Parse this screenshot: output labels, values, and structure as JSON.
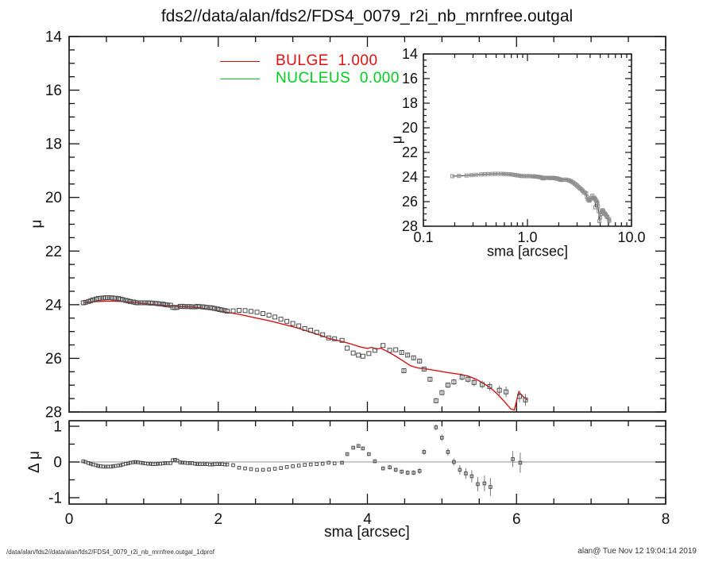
{
  "title": "fds2//data/alan/fds2/FDS4_0079_r2i_nb_mrnfree.outgal",
  "legend": {
    "items": [
      {
        "label": "BULGE  1.000",
        "color": "#dd1111"
      },
      {
        "label": "NUCLEUS  0.000",
        "color": "#00cc22"
      }
    ]
  },
  "footer": {
    "left": "/data/alan/fds2//data/alan/fds2/FDS4_0079_r2i_nb_mrnfree.outgal_1dprof",
    "right": "alan@  Tue Nov 12 19:04:14 2019"
  },
  "colors": {
    "axis": "#111111",
    "model_line": "#dd1111",
    "nucleus_line": "#00cc22",
    "marker": "#4a4a4a",
    "marker_inset": "#8f8f8f",
    "error_bar": "#787878",
    "zero_line": "#aaaaaa",
    "inset_line": "#333333"
  },
  "chart_data": {
    "type": "line+scatter",
    "y_axis_direction": "increasing-downward",
    "main_panel": {
      "ylabel": "μ",
      "xlim": [
        0,
        8
      ],
      "ylim": [
        14,
        28
      ],
      "yticks": [
        14,
        16,
        18,
        20,
        22,
        24,
        26,
        28
      ],
      "grid": false,
      "model_series": {
        "name": "BULGE",
        "points": [
          [
            0.2,
            23.92
          ],
          [
            0.3,
            23.89
          ],
          [
            0.4,
            23.88
          ],
          [
            0.5,
            23.87
          ],
          [
            0.6,
            23.87
          ],
          [
            0.7,
            23.88
          ],
          [
            0.8,
            23.9
          ],
          [
            0.9,
            23.92
          ],
          [
            1.0,
            23.96
          ],
          [
            1.1,
            23.99
          ],
          [
            1.2,
            24.01
          ],
          [
            1.3,
            24.03
          ],
          [
            1.4,
            24.05
          ],
          [
            1.5,
            24.07
          ],
          [
            1.6,
            24.08
          ],
          [
            1.7,
            24.1
          ],
          [
            1.8,
            24.14
          ],
          [
            1.9,
            24.18
          ],
          [
            2.0,
            24.23
          ],
          [
            2.1,
            24.28
          ],
          [
            2.2,
            24.32
          ],
          [
            2.3,
            24.37
          ],
          [
            2.4,
            24.43
          ],
          [
            2.5,
            24.49
          ],
          [
            2.6,
            24.55
          ],
          [
            2.7,
            24.61
          ],
          [
            2.8,
            24.68
          ],
          [
            2.9,
            24.75
          ],
          [
            3.0,
            24.82
          ],
          [
            3.1,
            24.9
          ],
          [
            3.2,
            24.99
          ],
          [
            3.3,
            25.08
          ],
          [
            3.4,
            25.17
          ],
          [
            3.5,
            25.27
          ],
          [
            3.6,
            25.33
          ],
          [
            3.7,
            25.4
          ],
          [
            3.8,
            25.48
          ],
          [
            3.9,
            25.57
          ],
          [
            4.0,
            25.63
          ],
          [
            4.06,
            25.59
          ],
          [
            4.12,
            25.66
          ],
          [
            4.18,
            25.62
          ],
          [
            4.28,
            25.76
          ],
          [
            4.38,
            25.92
          ],
          [
            4.48,
            26.1
          ],
          [
            4.58,
            26.28
          ],
          [
            4.68,
            26.36
          ],
          [
            4.8,
            26.4
          ],
          [
            4.95,
            26.47
          ],
          [
            5.1,
            26.54
          ],
          [
            5.25,
            26.6
          ],
          [
            5.35,
            26.66
          ],
          [
            5.45,
            26.77
          ],
          [
            5.55,
            26.92
          ],
          [
            5.65,
            27.1
          ],
          [
            5.75,
            27.35
          ],
          [
            5.85,
            27.65
          ],
          [
            5.92,
            27.88
          ],
          [
            5.97,
            27.93
          ],
          [
            6.03,
            27.25
          ],
          [
            6.08,
            27.4
          ],
          [
            6.14,
            27.55
          ]
        ]
      },
      "observed_points": [
        [
          0.19,
          23.93,
          0
        ],
        [
          0.22,
          23.91,
          0
        ],
        [
          0.26,
          23.88,
          0
        ],
        [
          0.29,
          23.85,
          0
        ],
        [
          0.32,
          23.82,
          0
        ],
        [
          0.36,
          23.79,
          0
        ],
        [
          0.39,
          23.77,
          0
        ],
        [
          0.42,
          23.76,
          0
        ],
        [
          0.46,
          23.75,
          0
        ],
        [
          0.49,
          23.74,
          0
        ],
        [
          0.52,
          23.74,
          0
        ],
        [
          0.56,
          23.74,
          0
        ],
        [
          0.59,
          23.75,
          0
        ],
        [
          0.62,
          23.76,
          0
        ],
        [
          0.66,
          23.77,
          0
        ],
        [
          0.69,
          23.79,
          0
        ],
        [
          0.72,
          23.81,
          0
        ],
        [
          0.76,
          23.84,
          0
        ],
        [
          0.79,
          23.86,
          0
        ],
        [
          0.82,
          23.88,
          0
        ],
        [
          0.86,
          23.9,
          0
        ],
        [
          0.89,
          23.92,
          0
        ],
        [
          0.92,
          23.93,
          0
        ],
        [
          0.96,
          23.93,
          0
        ],
        [
          0.99,
          23.93,
          0
        ],
        [
          1.02,
          23.93,
          0
        ],
        [
          1.06,
          23.93,
          0
        ],
        [
          1.09,
          23.94,
          0
        ],
        [
          1.12,
          23.94,
          0
        ],
        [
          1.16,
          23.95,
          0
        ],
        [
          1.19,
          23.96,
          0
        ],
        [
          1.22,
          23.97,
          0
        ],
        [
          1.26,
          23.98,
          0
        ],
        [
          1.29,
          24.0,
          0
        ],
        [
          1.32,
          24.01,
          0
        ],
        [
          1.36,
          24.02,
          0
        ],
        [
          1.39,
          24.1,
          0
        ],
        [
          1.42,
          24.11,
          0
        ],
        [
          1.45,
          24.1,
          0
        ],
        [
          1.49,
          24.06,
          0
        ],
        [
          1.52,
          24.06,
          0
        ],
        [
          1.55,
          24.07,
          0
        ],
        [
          1.59,
          24.07,
          0
        ],
        [
          1.62,
          24.07,
          0
        ],
        [
          1.65,
          24.08,
          0
        ],
        [
          1.69,
          24.08,
          0
        ],
        [
          1.72,
          24.06,
          0
        ],
        [
          1.75,
          24.07,
          0
        ],
        [
          1.79,
          24.08,
          0
        ],
        [
          1.82,
          24.09,
          0
        ],
        [
          1.85,
          24.1,
          0
        ],
        [
          1.89,
          24.11,
          0
        ],
        [
          1.92,
          24.12,
          0
        ],
        [
          1.95,
          24.14,
          0
        ],
        [
          1.99,
          24.16,
          0
        ],
        [
          2.02,
          24.18,
          0
        ],
        [
          2.05,
          24.2,
          0
        ],
        [
          2.09,
          24.22,
          0
        ],
        [
          2.12,
          24.24,
          0
        ],
        [
          2.2,
          24.23,
          0
        ],
        [
          2.28,
          24.21,
          0
        ],
        [
          2.36,
          24.22,
          0
        ],
        [
          2.44,
          24.25,
          0
        ],
        [
          2.52,
          24.28,
          0
        ],
        [
          2.6,
          24.33,
          0
        ],
        [
          2.68,
          24.39,
          0
        ],
        [
          2.76,
          24.46,
          0
        ],
        [
          2.84,
          24.54,
          0
        ],
        [
          2.92,
          24.62,
          0
        ],
        [
          3.0,
          24.7,
          0
        ],
        [
          3.08,
          24.79,
          0
        ],
        [
          3.16,
          24.89,
          0
        ],
        [
          3.24,
          24.95,
          0
        ],
        [
          3.32,
          25.03,
          0
        ],
        [
          3.4,
          25.12,
          0
        ],
        [
          3.48,
          25.24,
          0
        ],
        [
          3.56,
          25.27,
          0
        ],
        [
          3.66,
          25.33,
          0
        ],
        [
          3.73,
          25.62,
          0
        ],
        [
          3.81,
          25.8,
          0
        ],
        [
          3.88,
          25.88,
          0
        ],
        [
          3.94,
          25.92,
          0
        ],
        [
          4.02,
          25.82,
          0
        ],
        [
          4.1,
          25.7,
          0
        ],
        [
          4.21,
          25.52,
          0
        ],
        [
          4.3,
          25.7,
          0
        ],
        [
          4.38,
          25.68,
          0
        ],
        [
          4.46,
          25.78,
          0.06
        ],
        [
          4.49,
          26.46,
          0.07
        ],
        [
          4.54,
          25.88,
          0.07
        ],
        [
          4.62,
          25.98,
          0.07
        ],
        [
          4.7,
          26.1,
          0.08
        ],
        [
          4.76,
          26.4,
          0.08
        ],
        [
          4.84,
          26.78,
          0.09
        ],
        [
          4.92,
          27.58,
          0.1
        ],
        [
          5.0,
          27.28,
          0.1
        ],
        [
          5.08,
          27.0,
          0.1
        ],
        [
          5.16,
          26.88,
          0.11
        ],
        [
          5.27,
          26.7,
          0.12
        ],
        [
          5.35,
          26.78,
          0.13
        ],
        [
          5.43,
          26.9,
          0.14
        ],
        [
          5.54,
          26.98,
          0.15
        ],
        [
          5.64,
          27.05,
          0.16
        ],
        [
          5.77,
          27.19,
          0.18
        ],
        [
          5.86,
          27.25,
          0.2
        ],
        [
          6.04,
          27.42,
          0.22
        ],
        [
          6.12,
          27.55,
          0.22
        ]
      ]
    },
    "residual_panel": {
      "ylabel": "Δ μ",
      "xlabel": "sma [arcsec]",
      "xlim": [
        0,
        8
      ],
      "ylim": [
        -1.17,
        1.16
      ],
      "xticks": [
        0,
        2,
        4,
        6,
        8
      ],
      "yticks": [
        1,
        0,
        -1
      ],
      "zero_line": true,
      "points": [
        [
          0.19,
          0.02,
          0
        ],
        [
          0.22,
          0.0,
          0
        ],
        [
          0.26,
          -0.03,
          0
        ],
        [
          0.29,
          -0.05,
          0
        ],
        [
          0.32,
          -0.07,
          0
        ],
        [
          0.36,
          -0.09,
          0
        ],
        [
          0.39,
          -0.11,
          0
        ],
        [
          0.42,
          -0.12,
          0
        ],
        [
          0.46,
          -0.13,
          0
        ],
        [
          0.49,
          -0.13,
          0
        ],
        [
          0.52,
          -0.13,
          0
        ],
        [
          0.56,
          -0.13,
          0
        ],
        [
          0.59,
          -0.12,
          0
        ],
        [
          0.62,
          -0.11,
          0
        ],
        [
          0.66,
          -0.1,
          0
        ],
        [
          0.69,
          -0.09,
          0
        ],
        [
          0.72,
          -0.07,
          0
        ],
        [
          0.76,
          -0.05,
          0
        ],
        [
          0.79,
          -0.04,
          0
        ],
        [
          0.82,
          -0.02,
          0
        ],
        [
          0.86,
          -0.01,
          0
        ],
        [
          0.89,
          0.0,
          0
        ],
        [
          0.92,
          -0.01,
          0
        ],
        [
          0.96,
          -0.02,
          0
        ],
        [
          0.99,
          -0.03,
          0
        ],
        [
          1.02,
          -0.04,
          0
        ],
        [
          1.06,
          -0.05,
          0
        ],
        [
          1.09,
          -0.05,
          0
        ],
        [
          1.12,
          -0.06,
          0
        ],
        [
          1.16,
          -0.06,
          0
        ],
        [
          1.19,
          -0.05,
          0
        ],
        [
          1.22,
          -0.05,
          0
        ],
        [
          1.26,
          -0.04,
          0
        ],
        [
          1.29,
          -0.03,
          0
        ],
        [
          1.32,
          -0.03,
          0
        ],
        [
          1.36,
          -0.03,
          0
        ],
        [
          1.39,
          0.05,
          0
        ],
        [
          1.42,
          0.06,
          0
        ],
        [
          1.45,
          0.04,
          0
        ],
        [
          1.49,
          -0.01,
          0
        ],
        [
          1.52,
          -0.02,
          0
        ],
        [
          1.55,
          -0.02,
          0
        ],
        [
          1.59,
          -0.03,
          0
        ],
        [
          1.62,
          -0.03,
          0
        ],
        [
          1.65,
          -0.03,
          0
        ],
        [
          1.69,
          -0.05,
          0
        ],
        [
          1.72,
          -0.06,
          0
        ],
        [
          1.75,
          -0.06,
          0
        ],
        [
          1.79,
          -0.06,
          0
        ],
        [
          1.82,
          -0.06,
          0
        ],
        [
          1.85,
          -0.06,
          0
        ],
        [
          1.89,
          -0.07,
          0
        ],
        [
          1.92,
          -0.07,
          0
        ],
        [
          1.95,
          -0.06,
          0
        ],
        [
          1.99,
          -0.06,
          0
        ],
        [
          2.02,
          -0.06,
          0
        ],
        [
          2.05,
          -0.06,
          0
        ],
        [
          2.09,
          -0.07,
          0
        ],
        [
          2.12,
          -0.07,
          0
        ],
        [
          2.2,
          -0.09,
          0
        ],
        [
          2.28,
          -0.16,
          0
        ],
        [
          2.36,
          -0.18,
          0
        ],
        [
          2.44,
          -0.2,
          0
        ],
        [
          2.52,
          -0.22,
          0
        ],
        [
          2.6,
          -0.22,
          0
        ],
        [
          2.68,
          -0.21,
          0
        ],
        [
          2.76,
          -0.19,
          0
        ],
        [
          2.84,
          -0.17,
          0
        ],
        [
          2.92,
          -0.14,
          0
        ],
        [
          3.0,
          -0.12,
          0
        ],
        [
          3.08,
          -0.1,
          0
        ],
        [
          3.16,
          -0.08,
          0
        ],
        [
          3.24,
          -0.07,
          0
        ],
        [
          3.32,
          -0.06,
          0
        ],
        [
          3.4,
          -0.05,
          0
        ],
        [
          3.48,
          -0.02,
          0
        ],
        [
          3.56,
          -0.04,
          0
        ],
        [
          3.66,
          -0.02,
          0.03
        ],
        [
          3.73,
          0.22,
          0.04
        ],
        [
          3.81,
          0.4,
          0.04
        ],
        [
          3.88,
          0.45,
          0.04
        ],
        [
          3.94,
          0.38,
          0.05
        ],
        [
          4.02,
          0.22,
          0.05
        ],
        [
          4.1,
          0.02,
          0.05
        ],
        [
          4.21,
          -0.18,
          0.05
        ],
        [
          4.3,
          -0.15,
          0.06
        ],
        [
          4.38,
          -0.22,
          0.06
        ],
        [
          4.46,
          -0.27,
          0.06
        ],
        [
          4.54,
          -0.3,
          0.07
        ],
        [
          4.62,
          -0.3,
          0.07
        ],
        [
          4.7,
          -0.25,
          0.08
        ],
        [
          4.76,
          0.28,
          0.08
        ],
        [
          4.92,
          0.97,
          0.08
        ],
        [
          5.0,
          0.68,
          0.09
        ],
        [
          5.08,
          0.28,
          0.1
        ],
        [
          5.16,
          0.0,
          0.1
        ],
        [
          5.24,
          -0.22,
          0.13
        ],
        [
          5.32,
          -0.32,
          0.15
        ],
        [
          5.4,
          -0.4,
          0.17
        ],
        [
          5.48,
          -0.62,
          0.2
        ],
        [
          5.57,
          -0.6,
          0.22
        ],
        [
          5.65,
          -0.7,
          0.25
        ],
        [
          5.95,
          0.08,
          0.22
        ],
        [
          6.05,
          -0.02,
          0.28
        ]
      ]
    },
    "inset_panel": {
      "ylabel": "μ",
      "xlabel": "sma [arcsec]",
      "xscale": "log",
      "xlim": [
        0.1,
        10.0
      ],
      "ylim": [
        14,
        28
      ],
      "xtick_labels": [
        "0.1",
        "1.0",
        "10.0"
      ],
      "xtick_values": [
        0.1,
        1.0,
        10.0
      ],
      "yticks": [
        14,
        16,
        18,
        20,
        22,
        24,
        26,
        28
      ],
      "uses": "same observed_points as main panel, connected by a line"
    }
  }
}
